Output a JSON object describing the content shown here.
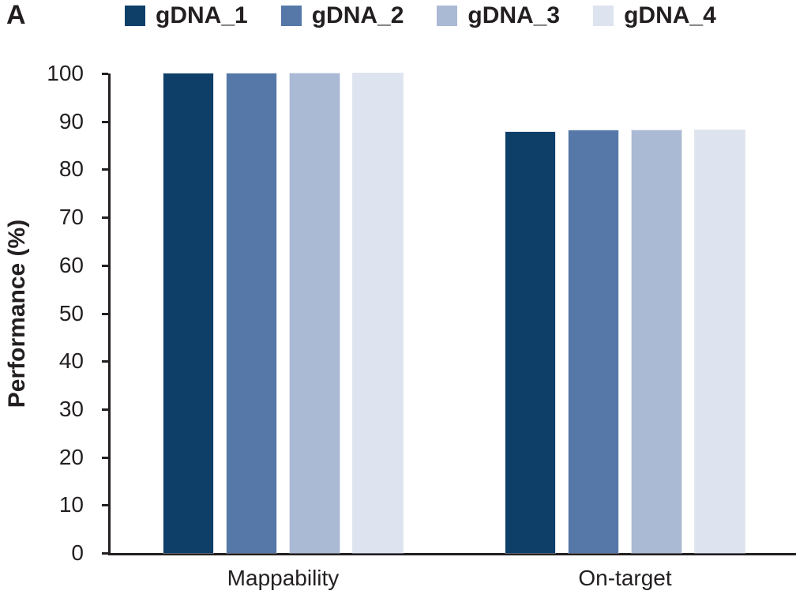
{
  "panel_label": "A",
  "colors": {
    "axis": "#231f20",
    "text": "#231f20",
    "background": "#ffffff"
  },
  "chart_data": {
    "type": "bar",
    "title": "",
    "categories": [
      "Mappability",
      "On-target"
    ],
    "series": [
      {
        "name": "gDNA_1",
        "color": "#0d3f69",
        "values": [
          100,
          87.8
        ]
      },
      {
        "name": "gDNA_2",
        "color": "#5578a8",
        "values": [
          100,
          88.2
        ]
      },
      {
        "name": "gDNA_3",
        "color": "#aab9d4",
        "values": [
          100,
          88.2
        ]
      },
      {
        "name": "gDNA_4",
        "color": "#dde3ef",
        "values": [
          100,
          88.2
        ]
      }
    ],
    "xlabel": "",
    "ylabel": "Performance (%)",
    "ylim": [
      0,
      100
    ],
    "yticks": [
      0,
      10,
      20,
      30,
      40,
      50,
      60,
      70,
      80,
      90,
      100
    ],
    "legend_position": "top",
    "grid": false
  }
}
